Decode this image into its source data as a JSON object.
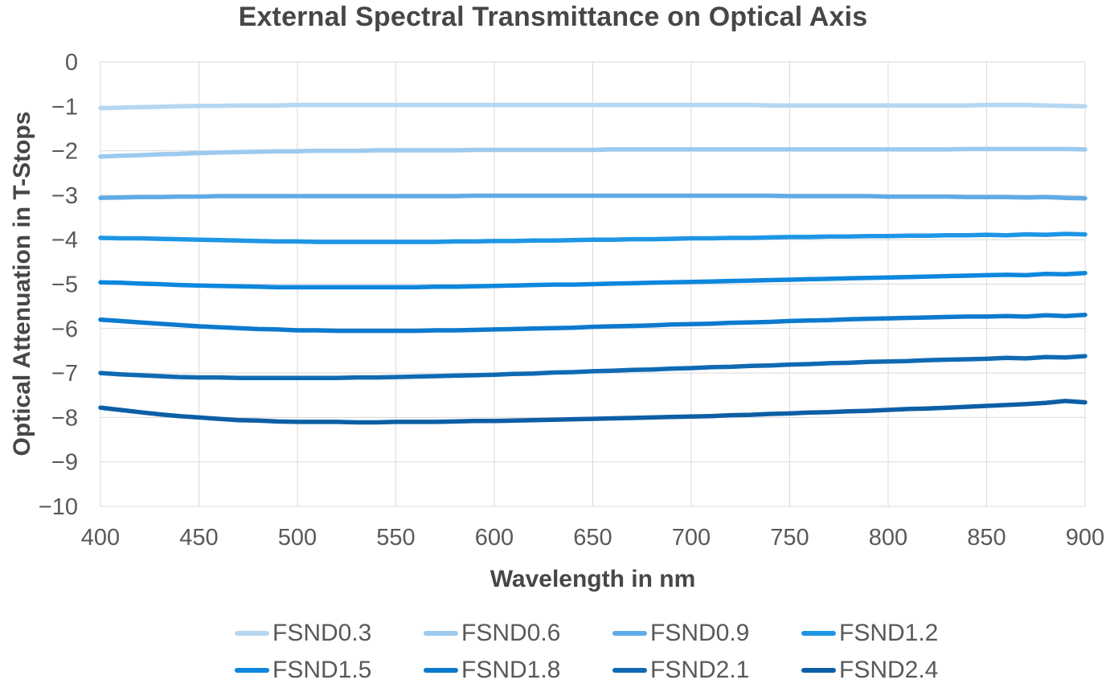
{
  "colors": {
    "grid": "#d9d9d9",
    "tick_text": "#595959",
    "title_text": "#474747",
    "background": "#ffffff"
  },
  "chart_data": {
    "type": "line",
    "title": "External Spectral Transmittance on Optical Axis",
    "xlabel": "Wavelength in nm",
    "ylabel": "Optical Attenuation in T-Stops",
    "xlim": [
      400,
      900
    ],
    "ylim": [
      -10,
      0
    ],
    "x_ticks": [
      400,
      450,
      500,
      550,
      600,
      650,
      700,
      750,
      800,
      850,
      900
    ],
    "y_ticks": [
      0,
      -1,
      -2,
      -3,
      -4,
      -5,
      -6,
      -7,
      -8,
      -9,
      -10
    ],
    "grid": true,
    "legend_position": "bottom",
    "x": [
      400,
      410,
      420,
      430,
      440,
      450,
      460,
      470,
      480,
      490,
      500,
      510,
      520,
      530,
      540,
      550,
      560,
      570,
      580,
      590,
      600,
      610,
      620,
      630,
      640,
      650,
      660,
      670,
      680,
      690,
      700,
      710,
      720,
      730,
      740,
      750,
      760,
      770,
      780,
      790,
      800,
      810,
      820,
      830,
      840,
      850,
      860,
      870,
      880,
      890,
      900
    ],
    "series": [
      {
        "name": "FSND0.3",
        "color": "#b6d7f1",
        "values": [
          -1.04,
          -1.03,
          -1.02,
          -1.01,
          -1.0,
          -0.99,
          -0.99,
          -0.98,
          -0.98,
          -0.98,
          -0.97,
          -0.97,
          -0.97,
          -0.97,
          -0.97,
          -0.97,
          -0.97,
          -0.97,
          -0.97,
          -0.97,
          -0.97,
          -0.97,
          -0.97,
          -0.97,
          -0.97,
          -0.97,
          -0.97,
          -0.97,
          -0.97,
          -0.97,
          -0.97,
          -0.97,
          -0.97,
          -0.97,
          -0.98,
          -0.98,
          -0.98,
          -0.98,
          -0.98,
          -0.98,
          -0.98,
          -0.98,
          -0.98,
          -0.98,
          -0.98,
          -0.97,
          -0.97,
          -0.97,
          -0.98,
          -0.99,
          -1.0
        ]
      },
      {
        "name": "FSND0.6",
        "color": "#9dcaee",
        "values": [
          -2.13,
          -2.11,
          -2.1,
          -2.08,
          -2.07,
          -2.05,
          -2.04,
          -2.03,
          -2.02,
          -2.01,
          -2.01,
          -2.0,
          -2.0,
          -2.0,
          -1.99,
          -1.99,
          -1.99,
          -1.99,
          -1.99,
          -1.98,
          -1.98,
          -1.98,
          -1.98,
          -1.98,
          -1.98,
          -1.98,
          -1.97,
          -1.97,
          -1.97,
          -1.97,
          -1.97,
          -1.97,
          -1.97,
          -1.97,
          -1.97,
          -1.97,
          -1.97,
          -1.97,
          -1.97,
          -1.97,
          -1.97,
          -1.97,
          -1.97,
          -1.97,
          -1.96,
          -1.96,
          -1.96,
          -1.96,
          -1.96,
          -1.96,
          -1.97
        ]
      },
      {
        "name": "FSND0.9",
        "color": "#5fabe7",
        "values": [
          -3.06,
          -3.05,
          -3.04,
          -3.04,
          -3.03,
          -3.03,
          -3.02,
          -3.02,
          -3.02,
          -3.02,
          -3.02,
          -3.02,
          -3.02,
          -3.02,
          -3.02,
          -3.02,
          -3.02,
          -3.02,
          -3.02,
          -3.01,
          -3.01,
          -3.01,
          -3.01,
          -3.01,
          -3.01,
          -3.01,
          -3.01,
          -3.01,
          -3.01,
          -3.01,
          -3.01,
          -3.01,
          -3.01,
          -3.01,
          -3.01,
          -3.02,
          -3.02,
          -3.02,
          -3.02,
          -3.02,
          -3.03,
          -3.03,
          -3.03,
          -3.03,
          -3.04,
          -3.04,
          -3.04,
          -3.05,
          -3.04,
          -3.06,
          -3.07
        ]
      },
      {
        "name": "FSND1.2",
        "color": "#1e96e6",
        "values": [
          -3.96,
          -3.97,
          -3.97,
          -3.98,
          -3.99,
          -4.0,
          -4.01,
          -4.02,
          -4.03,
          -4.04,
          -4.04,
          -4.05,
          -4.05,
          -4.05,
          -4.05,
          -4.05,
          -4.05,
          -4.05,
          -4.04,
          -4.04,
          -4.03,
          -4.03,
          -4.02,
          -4.02,
          -4.01,
          -4.0,
          -4.0,
          -3.99,
          -3.99,
          -3.98,
          -3.97,
          -3.97,
          -3.96,
          -3.96,
          -3.95,
          -3.94,
          -3.94,
          -3.93,
          -3.93,
          -3.92,
          -3.92,
          -3.91,
          -3.91,
          -3.9,
          -3.9,
          -3.89,
          -3.9,
          -3.88,
          -3.89,
          -3.87,
          -3.88
        ]
      },
      {
        "name": "FSND1.5",
        "color": "#0d87dd",
        "values": [
          -4.96,
          -4.97,
          -4.99,
          -5.0,
          -5.02,
          -5.03,
          -5.04,
          -5.05,
          -5.06,
          -5.07,
          -5.07,
          -5.07,
          -5.07,
          -5.07,
          -5.07,
          -5.07,
          -5.07,
          -5.06,
          -5.06,
          -5.05,
          -5.04,
          -5.03,
          -5.02,
          -5.01,
          -5.01,
          -5.0,
          -4.99,
          -4.98,
          -4.97,
          -4.96,
          -4.95,
          -4.94,
          -4.93,
          -4.92,
          -4.91,
          -4.9,
          -4.89,
          -4.88,
          -4.87,
          -4.86,
          -4.85,
          -4.84,
          -4.83,
          -4.82,
          -4.81,
          -4.8,
          -4.79,
          -4.8,
          -4.77,
          -4.78,
          -4.75
        ]
      },
      {
        "name": "FSND1.8",
        "color": "#0c7ace",
        "values": [
          -5.8,
          -5.83,
          -5.86,
          -5.89,
          -5.92,
          -5.95,
          -5.97,
          -5.99,
          -6.01,
          -6.02,
          -6.04,
          -6.04,
          -6.05,
          -6.05,
          -6.05,
          -6.05,
          -6.05,
          -6.04,
          -6.04,
          -6.03,
          -6.02,
          -6.01,
          -6.0,
          -5.99,
          -5.98,
          -5.96,
          -5.95,
          -5.94,
          -5.93,
          -5.91,
          -5.9,
          -5.89,
          -5.87,
          -5.86,
          -5.85,
          -5.83,
          -5.82,
          -5.81,
          -5.79,
          -5.78,
          -5.77,
          -5.76,
          -5.75,
          -5.74,
          -5.73,
          -5.73,
          -5.72,
          -5.73,
          -5.7,
          -5.72,
          -5.69
        ]
      },
      {
        "name": "FSND2.1",
        "color": "#0f6ab3",
        "values": [
          -7.0,
          -7.03,
          -7.05,
          -7.07,
          -7.09,
          -7.1,
          -7.1,
          -7.11,
          -7.11,
          -7.11,
          -7.11,
          -7.11,
          -7.11,
          -7.1,
          -7.1,
          -7.09,
          -7.08,
          -7.07,
          -7.06,
          -7.05,
          -7.04,
          -7.02,
          -7.01,
          -6.99,
          -6.98,
          -6.96,
          -6.95,
          -6.93,
          -6.92,
          -6.9,
          -6.89,
          -6.87,
          -6.86,
          -6.84,
          -6.83,
          -6.81,
          -6.8,
          -6.78,
          -6.77,
          -6.75,
          -6.74,
          -6.73,
          -6.71,
          -6.7,
          -6.69,
          -6.68,
          -6.66,
          -6.67,
          -6.64,
          -6.65,
          -6.62
        ]
      },
      {
        "name": "FSND2.4",
        "color": "#0c5fa5",
        "values": [
          -7.78,
          -7.83,
          -7.88,
          -7.93,
          -7.97,
          -8.0,
          -8.03,
          -8.06,
          -8.07,
          -8.09,
          -8.1,
          -8.1,
          -8.1,
          -8.11,
          -8.11,
          -8.1,
          -8.1,
          -8.1,
          -8.09,
          -8.08,
          -8.08,
          -8.07,
          -8.06,
          -8.05,
          -8.04,
          -8.03,
          -8.02,
          -8.01,
          -8.0,
          -7.99,
          -7.98,
          -7.97,
          -7.95,
          -7.94,
          -7.92,
          -7.91,
          -7.89,
          -7.88,
          -7.86,
          -7.85,
          -7.83,
          -7.81,
          -7.8,
          -7.78,
          -7.76,
          -7.74,
          -7.72,
          -7.7,
          -7.67,
          -7.63,
          -7.66
        ]
      }
    ]
  }
}
